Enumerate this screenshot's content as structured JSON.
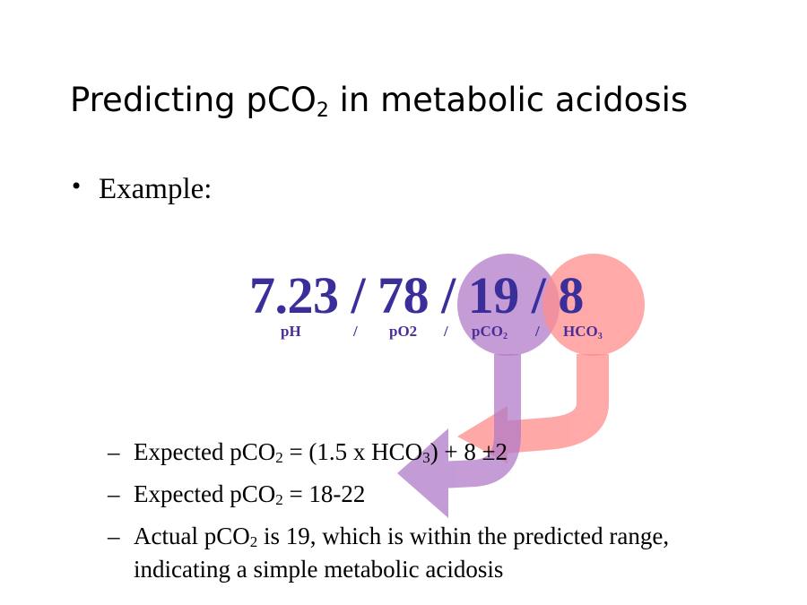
{
  "slide": {
    "title": {
      "prefix": "Predicting pCO",
      "subscript": "2",
      "suffix": " in metabolic acidosis"
    },
    "bullet": {
      "marker": "•",
      "text": "Example:"
    },
    "values": {
      "text": "7.23 / 78 / 19 / 8"
    },
    "labels": {
      "ph": "pH",
      "sep1": "/",
      "po2": "pO2",
      "sep2": "/",
      "pco2": "pCO",
      "pco2_sub": "2",
      "sep3": "/",
      "hco3": "HCO",
      "hco3_sub": "3"
    },
    "sub_items": [
      {
        "dash": "–",
        "part1": "Expected pCO",
        "sub1": "2",
        "part2": " = (1.5 x HCO",
        "sub2": "3",
        "part3": ") + 8 ±2"
      },
      {
        "dash": "–",
        "part1": "Expected pCO",
        "sub1": "2",
        "part2": " = 18-22"
      },
      {
        "dash": "–",
        "part1": "Actual pCO",
        "sub1": "2",
        "part2": " is 19, which is within the predicted range, indicating a simple metabolic acidosis"
      }
    ],
    "colors": {
      "values_text": "#3a2f9a",
      "purple_highlight": "#b17bc7",
      "red_highlight": "#ff8c8c"
    }
  }
}
